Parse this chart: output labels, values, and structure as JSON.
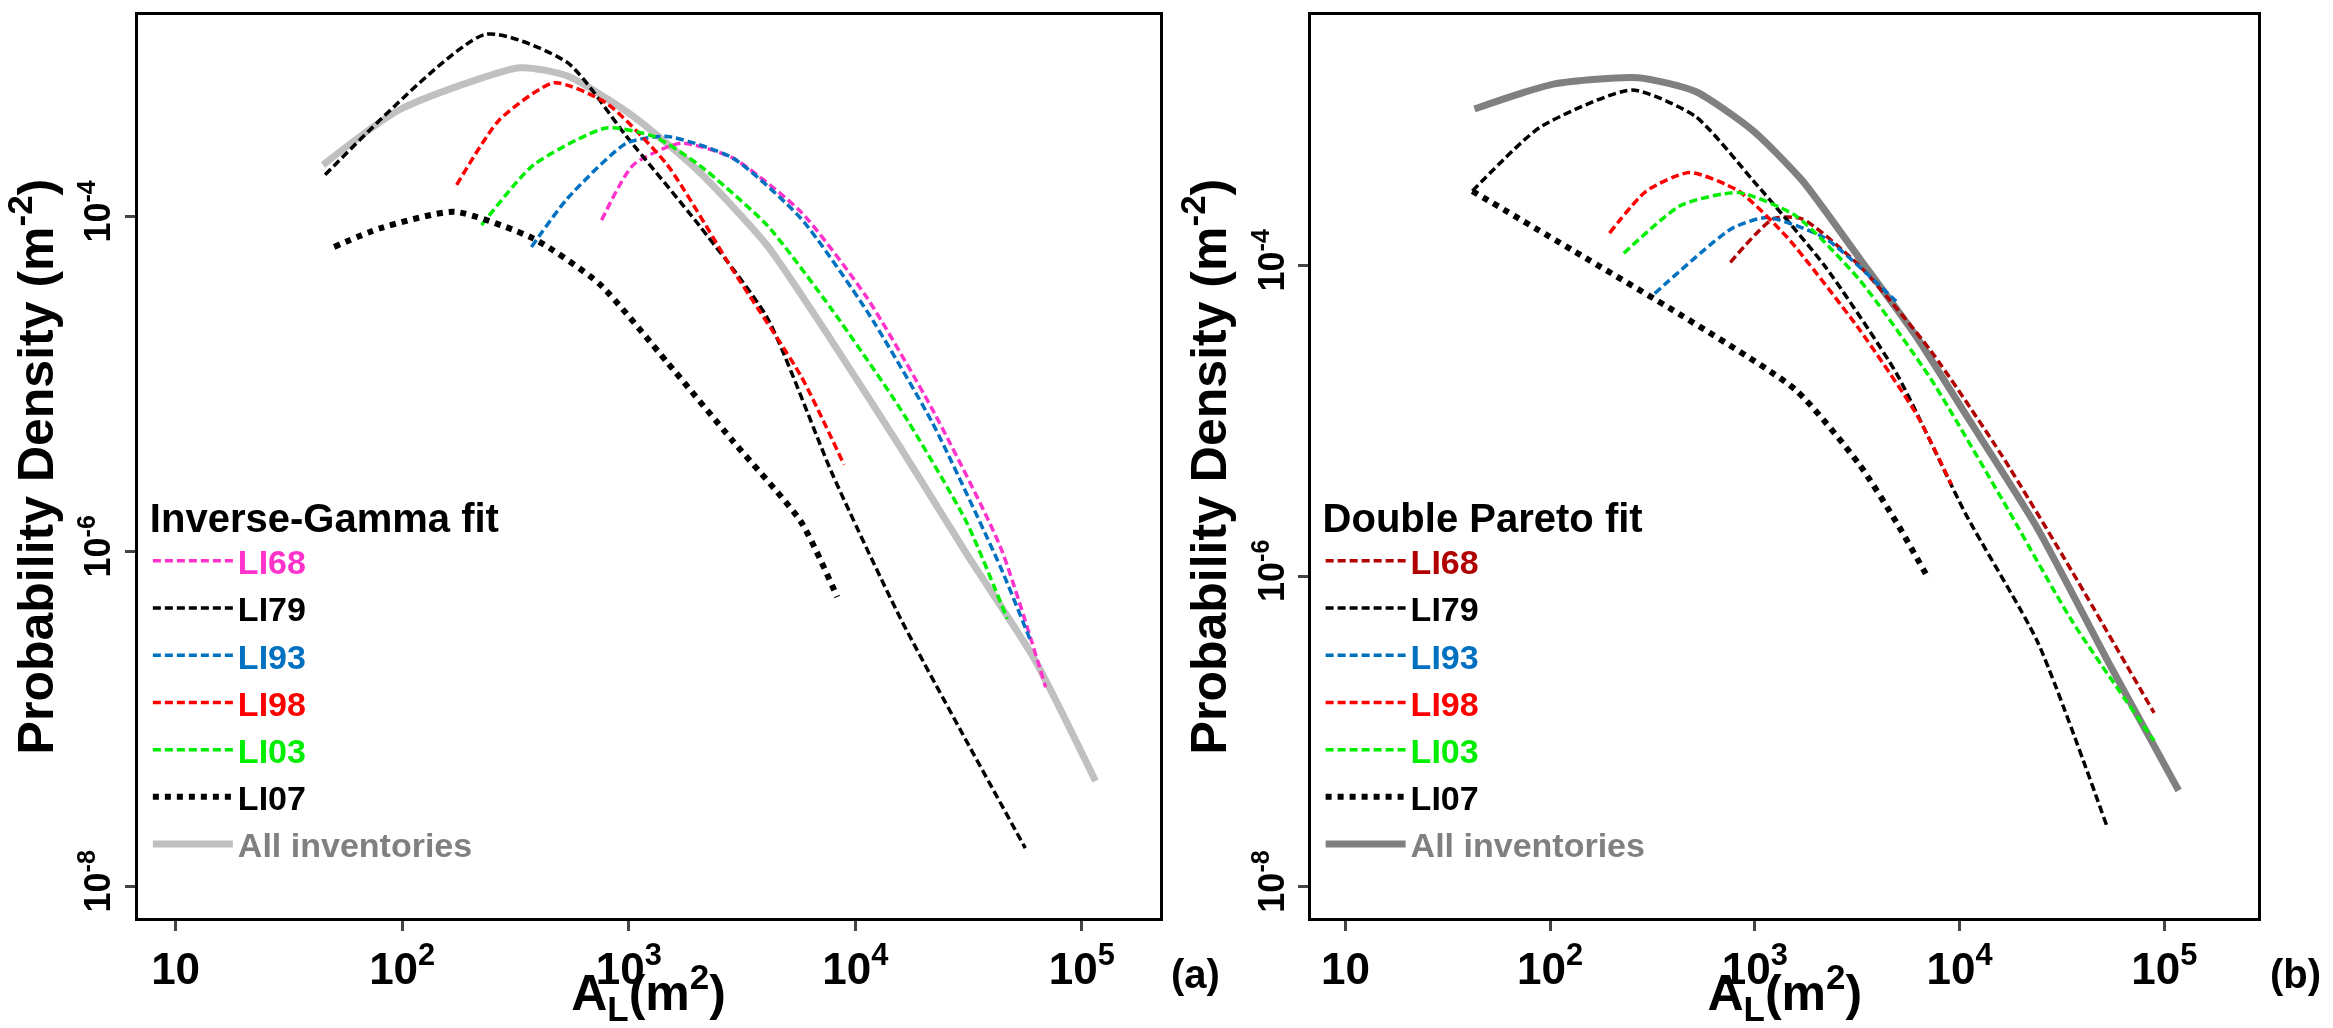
{
  "chart_data": [
    {
      "type": "line",
      "legend_title": "Inverse-Gamma fit",
      "xlabel": "A$_{L}$(m$^{2}$)",
      "ylabel": "Probability Density (m$^{-2}$)",
      "log": "xy",
      "legend": "bottom left",
      "xlim": [
        6.8,
        220000
      ],
      "ylim": [
        6.5e-09,
        0.0016
      ],
      "xticks": [
        10,
        {
          "value": 100,
          "label": "10$^{2}$"
        },
        {
          "value": 1000,
          "label": "10$^{3}$"
        },
        {
          "value": 10000,
          "label": "10$^{4}$"
        },
        {
          "value": 100000,
          "label": "10$^{5}$"
        }
      ],
      "yticks": [
        {
          "value": 1e-08,
          "label": "10$^{-8}$"
        },
        {
          "value": 1e-06,
          "label": "10$^{-6}$"
        },
        {
          "value": 0.0001,
          "label": "10$^{-4}$"
        }
      ],
      "annotations": [
        "(a)"
      ],
      "series": [
        {
          "name": "LI68",
          "color": "#ff33cc",
          "line_style": "dashed",
          "x": [
            759,
            1047,
            1698,
            2884,
            5754,
            11220,
            21878,
            43652,
            69183
          ],
          "values": [
            9.55e-05,
            0.000204,
            0.000275,
            0.000224,
            0.000107,
            3.31e-05,
            7.08e-06,
            1.07e-06,
            1.55e-07
          ]
        },
        {
          "name": "LI79",
          "color": "#000000",
          "line_style": "dashed",
          "x": [
            45.7,
            234,
            537,
            977,
            2042,
            4074,
            7943,
            15849,
            56234
          ],
          "values": [
            0.000178,
            0.00123,
            0.000832,
            0.000302,
            8.91e-05,
            2.51e-05,
            2.88e-06,
            3.98e-07,
            1.7e-08
          ]
        },
        {
          "name": "LI93",
          "color": "#0070c0",
          "line_style": "dashed",
          "x": [
            372,
            537,
            977,
            1479,
            2884,
            5754,
            11220,
            21878,
            43652,
            58884
          ],
          "values": [
            6.61e-05,
            0.000129,
            0.000275,
            0.000302,
            0.000224,
            9.77e-05,
            2.75e-05,
            5.89e-06,
            8.13e-07,
            3.02e-07
          ]
        },
        {
          "name": "LI98",
          "color": "#ff0000",
          "line_style": "dashed",
          "x": [
            174,
            269,
            468,
            794,
            1479,
            2884,
            5754,
            8913
          ],
          "values": [
            0.000155,
            0.00038,
            0.000631,
            0.000479,
            0.000204,
            4.79e-05,
            1.12e-05,
            3.31e-06
          ]
        },
        {
          "name": "LI03",
          "color": "#00ee00",
          "line_style": "dashed",
          "x": [
            224,
            380,
            794,
            1288,
            2042,
            4074,
            7943,
            15849,
            30903,
            46774
          ],
          "values": [
            8.91e-05,
            0.000204,
            0.000339,
            0.000302,
            0.000204,
            8.91e-05,
            2.75e-05,
            7.08e-06,
            1.51e-06,
            3.98e-07
          ]
        },
        {
          "name": "LI07",
          "color": "#000000",
          "line_style": "dotted",
          "x": [
            50.1,
            79.4,
            170,
            380,
            741,
            1479,
            2884,
            5754,
            8318
          ],
          "values": [
            6.61e-05,
            8.51e-05,
            0.000107,
            7.41e-05,
            3.98e-05,
            1.35e-05,
            4.57e-06,
            1.51e-06,
            5.37e-07
          ]
        },
        {
          "name": "All inventories",
          "color": "#c0c0c0",
          "line_style": "solid",
          "x": [
            44.7,
            97.7,
            331,
            537,
            1047,
            2042,
            4074,
            7943,
            15849,
            30903,
            61660,
            114815
          ],
          "values": [
            0.000204,
            0.000437,
            0.000776,
            0.000692,
            0.000398,
            0.000186,
            6.76e-05,
            1.78e-05,
            4.17e-06,
            9.77e-07,
            2.29e-07,
            4.27e-08
          ]
        }
      ]
    },
    {
      "type": "line",
      "legend_title": "Double Pareto fit",
      "xlabel": "A$_{L}$(m$^{2}$)",
      "ylabel": "Probability Density (m$^{-2}$)",
      "log": "xy",
      "legend": "bottom left",
      "xlim": [
        6.8,
        288000
      ],
      "ylim": [
        6.3e-09,
        0.0041
      ],
      "xticks": [
        10,
        {
          "value": 100,
          "label": "10$^{2}$"
        },
        {
          "value": 1000,
          "label": "10$^{3}$"
        },
        {
          "value": 10000,
          "label": "10$^{4}$"
        },
        {
          "value": 100000,
          "label": "10$^{5}$"
        }
      ],
      "yticks": [
        {
          "value": 1e-08,
          "label": "10$^{-8}$"
        },
        {
          "value": 1e-06,
          "label": "10$^{-6}$"
        },
        {
          "value": 0.0001,
          "label": "10$^{-4}$"
        }
      ],
      "annotations": [
        "(b)"
      ],
      "series": [
        {
          "name": "LI68",
          "color": "#b00000",
          "line_style": "dashed",
          "x": [
            759,
            1230,
            1698,
            3236,
            7244,
            16218,
            35481,
            89125
          ],
          "values": [
            0.000105,
            0.0002,
            0.0002,
            0.0001,
            2.82e-05,
            5.89e-06,
            1.07e-06,
            1.32e-07
          ]
        },
        {
          "name": "LI79",
          "color": "#000000",
          "line_style": "dashed",
          "x": [
            41.7,
            89.1,
            251,
            513,
            977,
            2188,
            4898,
            10715,
            23988,
            52481
          ],
          "values": [
            0.000302,
            0.000776,
            0.00135,
            0.000912,
            0.000355,
            0.0001,
            2.04e-05,
            2.51e-06,
            3.8e-07,
            2.45e-08
          ]
        },
        {
          "name": "LI93",
          "color": "#0070c0",
          "line_style": "dashed",
          "x": [
            324,
            776,
            1148,
            2188,
            4898
          ],
          "values": [
            6.61e-05,
            0.000174,
            0.000204,
            0.000151,
            5.89e-05
          ]
        },
        {
          "name": "LI98",
          "color": "#ff0000",
          "line_style": "dashed",
          "x": [
            195,
            295,
            479,
            832,
            1445,
            3236,
            6166,
            9120
          ],
          "values": [
            0.000162,
            0.000302,
            0.000398,
            0.000302,
            0.000151,
            3.89e-05,
            1.1e-05,
            3.89e-06
          ]
        },
        {
          "name": "LI03",
          "color": "#00ee00",
          "line_style": "dashed",
          "x": [
            229,
            437,
            832,
            1585,
            3236,
            7244,
            16218,
            35481,
            89125
          ],
          "values": [
            0.00012,
            0.000245,
            0.000295,
            0.000209,
            8.13e-05,
            1.86e-05,
            3.09e-06,
            5.13e-07,
            8.71e-08
          ]
        },
        {
          "name": "LI07",
          "color": "#000000",
          "line_style": "dotted",
          "x": [
            41.7,
            132,
            437,
            1585,
            3236,
            4898,
            7079
          ],
          "values": [
            0.000302,
            0.000123,
            4.79e-05,
            1.58e-05,
            5.25e-06,
            2.24e-06,
            9.55e-07
          ]
        },
        {
          "name": "All inventories",
          "color": "#808080",
          "line_style": "solid",
          "x": [
            42.7,
            105,
            269,
            513,
            977,
            1698,
            3236,
            6166,
            10715,
            23988,
            53703,
            117490
          ],
          "values": [
            0.00102,
            0.00148,
            0.00162,
            0.00132,
            0.000741,
            0.000355,
            0.000112,
            3.47e-05,
            1.1e-05,
            2.04e-06,
            2.75e-07,
            4.17e-08
          ]
        }
      ]
    }
  ]
}
